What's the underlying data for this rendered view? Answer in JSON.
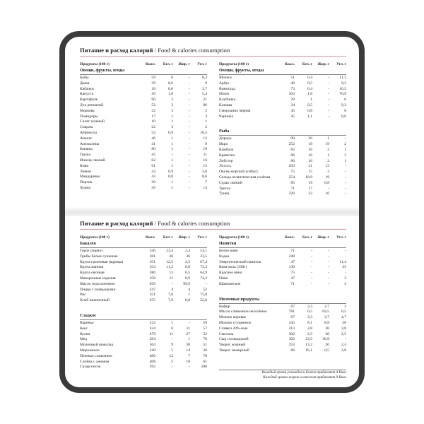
{
  "header_cols": [
    "Продукты (100 г)",
    "Ккал.",
    "Бел. г",
    "Жир. г",
    "Угл. г"
  ],
  "pages": [
    {
      "title_ru": "Питание и расход калорий",
      "title_en": "/ Food & calories consumption",
      "columns": [
        {
          "sections": [
            {
              "name": "Овощи, фрукты, ягоды",
              "rows": [
                [
                  "Бобы",
                  "59",
                  "6",
                  "-",
                  "8,3"
                ],
                [
                  "Дыня",
                  "39",
                  "0,6",
                  "-",
                  "9"
                ],
                [
                  "Кабачки",
                  "18",
                  "0,6",
                  "-",
                  "3,7"
                ],
                [
                  "Капуста",
                  "30",
                  "1,8",
                  "-",
                  "5,4"
                ],
                [
                  "Картофель",
                  "90",
                  "2",
                  "-",
                  "21"
                ],
                [
                  "Лук репчатый",
                  "52",
                  "3",
                  "-",
                  "96"
                ],
                [
                  "Морковь",
                  "22",
                  "3",
                  "-",
                  "2"
                ],
                [
                  "Помидоры",
                  "17",
                  "1",
                  "-",
                  "3"
                ],
                [
                  "Салат зеленый",
                  "10",
                  "1",
                  "-",
                  "1"
                ],
                [
                  "Спаржа",
                  "22",
                  "3",
                  "-",
                  "2"
                ],
                [
                  "Абрикосы",
                  "52",
                  "0,9",
                  "-",
                  "10,5"
                ],
                [
                  "Ананас",
                  "46",
                  "1",
                  "-",
                  "12"
                ],
                [
                  "Апельсины",
                  "41",
                  "1",
                  "-",
                  "9"
                ],
                [
                  "Бананы",
                  "80",
                  "1",
                  "-",
                  "19"
                ],
                [
                  "Груша",
                  "45",
                  "-",
                  "-",
                  "11"
                ],
                [
                  "Инжир свежий",
                  "62",
                  "1",
                  "-",
                  "16"
                ],
                [
                  "Киви",
                  "61",
                  "1",
                  "-",
                  "15"
                ],
                [
                  "Лимон",
                  "43",
                  "0,9",
                  "-",
                  "3,6"
                ],
                [
                  "Мандарины",
                  "43",
                  "0,8",
                  "-",
                  "8,6"
                ],
                [
                  "Персик",
                  "30",
                  "1",
                  "-",
                  "7"
                ],
                [
                  "Хурма",
                  "56",
                  "1",
                  "-",
                  "14"
                ]
              ]
            }
          ]
        },
        {
          "sections": [
            {
              "name": "Овощи, фрукты, ягоды",
              "rows": [
                [
                  "Яблоки",
                  "51",
                  "0,4",
                  "-",
                  "11,3"
                ],
                [
                  "Арбуз",
                  "40",
                  "0,5",
                  "-",
                  "9,2"
                ],
                [
                  "Виноград",
                  "73",
                  "0,4",
                  "-",
                  "16,5"
                ],
                [
                  "Изюм",
                  "303",
                  "1,8",
                  "-",
                  "70,9"
                ],
                [
                  "Клубника",
                  "29",
                  "1",
                  "-",
                  "6"
                ],
                [
                  "Клюква",
                  "34",
                  "0,5",
                  "-",
                  "9,2"
                ],
                [
                  "Смородина черная",
                  "45",
                  "0,8",
                  "-",
                  "8"
                ],
                [
                  "Черника",
                  "45",
                  "1,1",
                  "-",
                  "8,6"
                ]
              ]
            },
            {
              "name": "Рыба",
              "rows": [
                [
                  "Дорадо",
                  "90",
                  "20",
                  "1",
                  "-"
                ],
                [
                  "Икра",
                  "252",
                  "19",
                  "19",
                  "2"
                ],
                [
                  "Камбала",
                  "83",
                  "16",
                  "2",
                  "1"
                ],
                [
                  "Креветки",
                  "86",
                  "16",
                  "1",
                  "3"
                ],
                [
                  "Лобстер",
                  "86",
                  "16",
                  "2",
                  "1"
                ],
                [
                  "Лосось",
                  "203",
                  "21",
                  "13",
                  "-"
                ],
                [
                  "Окунь морской (сибас)",
                  "75",
                  "15",
                  "2",
                  "-"
                ],
                [
                  "Сельдь атлантическая солёная",
                  "254",
                  "18,9",
                  "19",
                  "-"
                ],
                [
                  "Судак свежий",
                  "85",
                  "19",
                  "0,8",
                  "-"
                ],
                [
                  "Треска",
                  "71",
                  "17",
                  "-",
                  "-"
                ],
                [
                  "Тунец",
                  "226",
                  "22",
                  "16",
                  "-"
                ]
              ]
            }
          ]
        }
      ]
    },
    {
      "title_ru": "Питание и расход калорий",
      "title_en": "/ Food & calories consumption",
      "columns": [
        {
          "sections": [
            {
              "name": "Бакалея",
              "rows": [
                [
                  "Горох (зерно)",
                  "336",
                  "23,4",
                  "2,4",
                  "53,1"
                ],
                [
                  "Грибы белые сушеные",
                  "281",
                  "36",
                  "36",
                  "23,5"
                ],
                [
                  "Крупа гречневая (ядрица)",
                  "351",
                  "12,5",
                  "2,5",
                  "67,4"
                ],
                [
                  "Крупа манная",
                  "354",
                  "11,2",
                  "0,8",
                  "73,3"
                ],
                [
                  "Крупа овсяная",
                  "380",
                  "13",
                  "6,5",
                  "64,9"
                ],
                [
                  "Макаронные изделия",
                  "358",
                  "11",
                  "0,9",
                  "74,2"
                ],
                [
                  "Масло подсолнечное",
                  "929",
                  "-",
                  "99,9",
                  "-"
                ],
                [
                  "Пицца с помидорами",
                  "247",
                  "4",
                  "4",
                  "52"
                ],
                [
                  "Рис",
                  "351",
                  "7,6",
                  "1",
                  "75,8"
                ],
                [
                  "Хлеб пшеничный",
                  "255",
                  "7,9",
                  "0,8",
                  "52,6"
                ]
              ]
            },
            {
              "name": "Сладкое",
              "rows": [
                [
                  "Варенье",
                  "222",
                  "1",
                  "-",
                  "59"
                ],
                [
                  "Кекс",
                  "334",
                  "6",
                  "11",
                  "57"
                ],
                [
                  "Кулич",
                  "479",
                  "11",
                  "27",
                  "52"
                ],
                [
                  "Мед",
                  "294",
                  "-",
                  "1",
                  "76"
                ],
                [
                  "Молочный шоколад",
                  "564",
                  "9",
                  "38",
                  "51"
                ],
                [
                  "Мороженое",
                  "240",
                  "5",
                  "14",
                  "26"
                ],
                [
                  "Печенье сливочное",
                  "406",
                  "12",
                  "7",
                  "78"
                ],
                [
                  "Слойка с джемом",
                  "408",
                  "5",
                  "18",
                  "61"
                ],
                [
                  "Сахар-песок",
                  "392",
                  "-",
                  "-",
                  "100"
                ]
              ]
            }
          ]
        },
        {
          "sections": [
            {
              "name": "Напитки",
              "rows": [
                [
                  "Белое вино",
                  "71",
                  "-",
                  "-",
                  "-"
                ],
                [
                  "Водка",
                  "248",
                  "-",
                  "-",
                  "-"
                ],
                [
                  "Энергетический напиток",
                  "47",
                  "-",
                  "-",
                  "11,4"
                ],
                [
                  "Кока-кола (330г)",
                  "130",
                  "-",
                  "-",
                  "35"
                ],
                [
                  "Красное вино",
                  "75",
                  "-",
                  "-",
                  "-"
                ],
                [
                  "Пиво",
                  "47",
                  "-",
                  "-",
                  "3"
                ],
                [
                  "Шампанское",
                  "71",
                  "-",
                  "-",
                  "3"
                ]
              ]
            },
            {
              "name": "Молочные продукты",
              "rows": [
                [
                  "Кефир",
                  "67",
                  "3,3",
                  "3,7",
                  "3"
                ],
                [
                  "Масло сливочное несолёное",
                  "781",
                  "0,5",
                  "83,5",
                  "0,5"
                ],
                [
                  "Молоко коровье",
                  "67",
                  "3,3",
                  "3,7",
                  "4,7"
                ],
                [
                  "Молоко сгущенное",
                  "345",
                  "8,1",
                  "8,8",
                  "56"
                ],
                [
                  "Сливки 20%-ные",
                  "213",
                  "2,8",
                  "20",
                  "3,8"
                ],
                [
                  "Сметана",
                  "302",
                  "2,5",
                  "30",
                  "2,5"
                ],
                [
                  "Сыр голландский",
                  "392",
                  "23,5",
                  "30,9",
                  "-"
                ],
                [
                  "Творог жирный",
                  "253",
                  "13,2",
                  "20",
                  "2,4"
                ],
                [
                  "Творог нежирный",
                  "86",
                  "16,1",
                  "0,5",
                  "2,8"
                ]
              ]
            }
          ]
        }
      ],
      "notes": [
        "Каждый грамм углеводов и белков прибавляет 4 Ккал",
        "Каждый грамм жиров и алкоголя прибавляет 9 Ккал"
      ]
    }
  ],
  "colors": {
    "frame": "#3b3b3b",
    "accent_line": "#e58b8b"
  }
}
